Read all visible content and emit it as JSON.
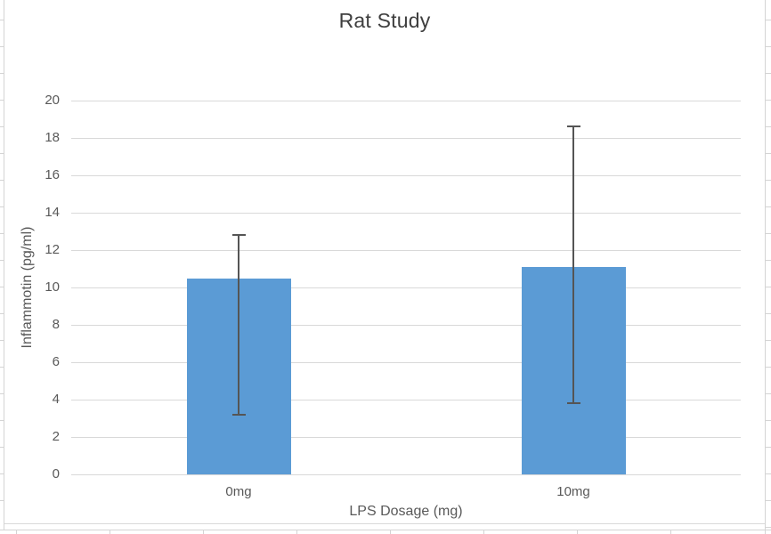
{
  "chart_data": {
    "type": "bar",
    "title": "Rat Study",
    "xlabel": "LPS Dosage (mg)",
    "ylabel": "Inflammotin (pg/ml)",
    "categories": [
      "0mg",
      "10mg"
    ],
    "values": [
      10.5,
      11.1
    ],
    "error_bars": [
      {
        "low": 3.2,
        "high": 12.8
      },
      {
        "low": 3.8,
        "high": 18.6
      }
    ],
    "ylim": [
      0,
      20
    ],
    "yticks": [
      0,
      2,
      4,
      6,
      8,
      10,
      12,
      14,
      16,
      18,
      20
    ],
    "grid": true,
    "legend": "none"
  },
  "colors": {
    "bar": "#5B9BD5",
    "error_bar": "#555555",
    "gridline": "#D9D9D9",
    "axis_text": "#595959",
    "title_text": "#3F3F3F",
    "sheet_line": "#D4D4D4"
  }
}
